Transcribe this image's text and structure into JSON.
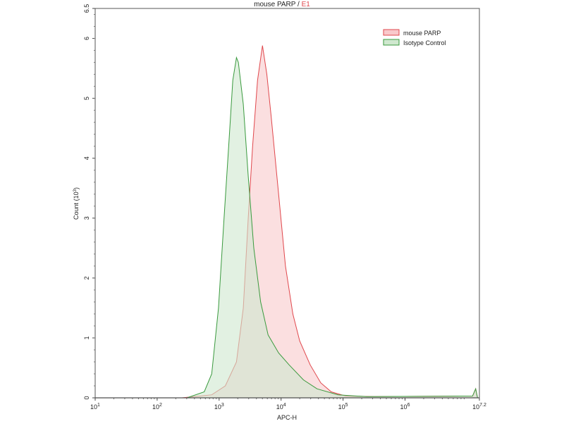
{
  "chart_data": {
    "type": "area",
    "title": "mouse PARP",
    "title_suffix": "E1",
    "title_separator": " / ",
    "xlabel": "APC-H",
    "ylabel": "Count",
    "ylabel_unit": "(10",
    "ylabel_unit_exp": "3",
    "ylabel_unit_close": ")",
    "x_scale": "log",
    "xlim": [
      10,
      15848932
    ],
    "ylim": [
      0,
      6.5
    ],
    "x_ticks": [
      {
        "base": "10",
        "exp": "1",
        "value": 10
      },
      {
        "base": "10",
        "exp": "2",
        "value": 100
      },
      {
        "base": "10",
        "exp": "3",
        "value": 1000
      },
      {
        "base": "10",
        "exp": "4",
        "value": 10000
      },
      {
        "base": "10",
        "exp": "5",
        "value": 100000
      },
      {
        "base": "10",
        "exp": "6",
        "value": 1000000
      },
      {
        "base": "10",
        "exp": "7.2",
        "value": 15848932
      }
    ],
    "y_ticks": [
      "0",
      "1",
      "2",
      "3",
      "4",
      "5",
      "6",
      "6.5"
    ],
    "grid": false,
    "legend_position": "top-right",
    "series": [
      {
        "name": "mouse PARP",
        "line_color": "#e0474c",
        "fill_color": "#f9c9cb",
        "x": [
          251,
          759,
          1259,
          1905,
          2455,
          2951,
          3467,
          4169,
          5012,
          5888,
          6918,
          9120,
          11750,
          15490,
          19950,
          29510,
          43650,
          64570,
          109600,
          316200,
          12300000,
          13800000,
          14800000
        ],
        "y": [
          0,
          0.05,
          0.2,
          0.6,
          1.5,
          3.0,
          4.2,
          5.3,
          5.88,
          5.4,
          4.7,
          3.4,
          2.2,
          1.4,
          0.95,
          0.55,
          0.25,
          0.1,
          0.03,
          0.02,
          0.03,
          0.15,
          0
        ]
      },
      {
        "name": "Isotype Control",
        "line_color": "#3a9a3e",
        "fill_color": "#cfe8cf",
        "x": [
          302,
          575,
          759,
          977,
          1202,
          1445,
          1660,
          1905,
          2042,
          2455,
          2951,
          3631,
          4677,
          6166,
          9120,
          13490,
          22910,
          38020,
          83180,
          239900,
          12300000,
          13800000,
          14800000
        ],
        "y": [
          0,
          0.1,
          0.4,
          1.5,
          3.0,
          4.3,
          5.3,
          5.68,
          5.6,
          4.9,
          3.7,
          2.5,
          1.6,
          1.05,
          0.75,
          0.55,
          0.3,
          0.15,
          0.05,
          0.02,
          0.03,
          0.15,
          0
        ]
      }
    ]
  }
}
